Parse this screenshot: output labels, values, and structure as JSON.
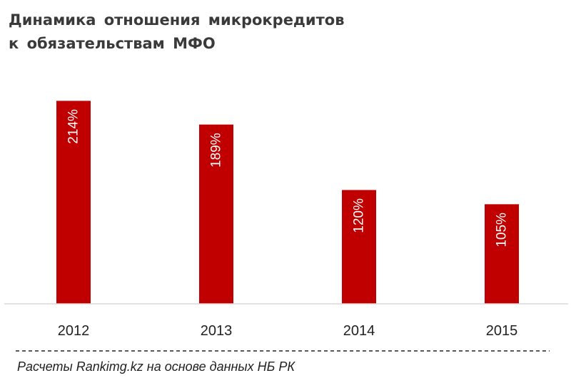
{
  "chart_data": {
    "type": "bar",
    "title_lines": [
      "Динамика отношения микрокредитов",
      "к обязательствам МФО"
    ],
    "categories": [
      "2012",
      "2013",
      "2014",
      "2015"
    ],
    "values": [
      214,
      189,
      120,
      105
    ],
    "data_labels": [
      "214%",
      "189%",
      "120%",
      "105%"
    ],
    "unit": "%",
    "xlabel": "",
    "ylabel": "",
    "ylim": [
      0,
      240
    ],
    "grid": false,
    "legend": "none",
    "bar_color": "#c00000",
    "label_color": "#ffffff"
  },
  "footer": {
    "source": "Расчеты Rankimg.kz на основе данных НБ РК"
  }
}
